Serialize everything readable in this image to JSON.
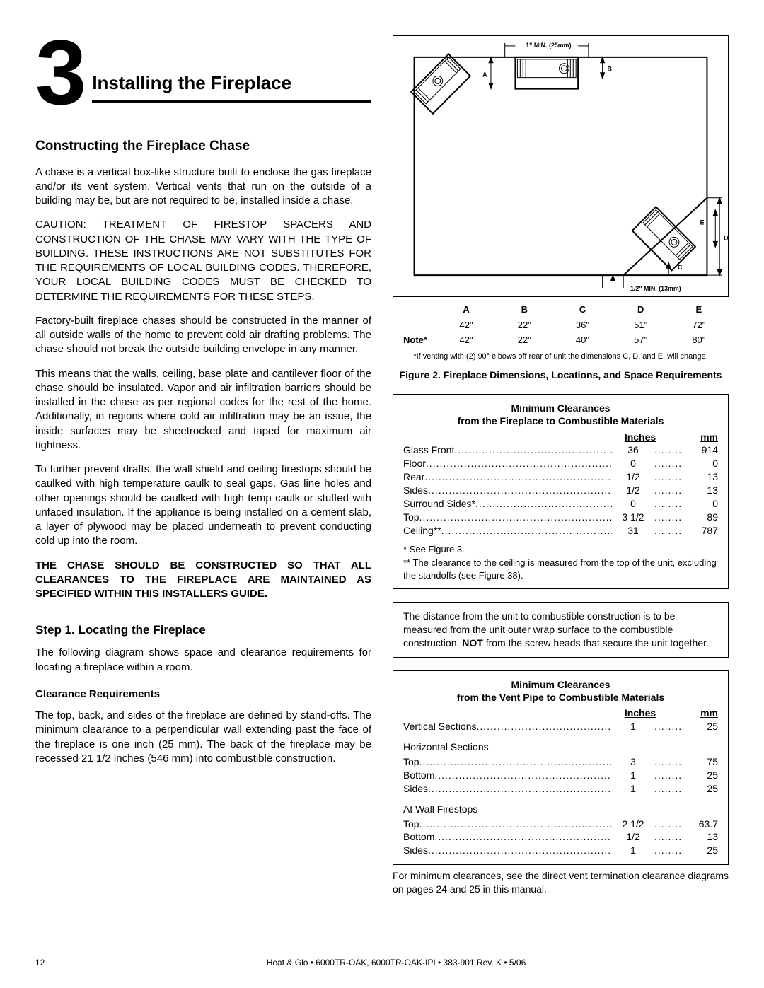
{
  "chapter": {
    "number": "3",
    "title": "Installing the Fireplace"
  },
  "leftcol": {
    "h2": "Constructing the Fireplace Chase",
    "p1": "A chase is a vertical box-like structure built to enclose the gas fireplace and/or its vent system. Vertical vents that run on the outside of a building may be, but are not required to be, installed inside a chase.",
    "p2": "CAUTION: TREATMENT OF FIRESTOP SPACERS AND CONSTRUCTION OF THE CHASE MAY VARY WITH THE TYPE OF BUILDING. THESE INSTRUCTIONS ARE NOT SUBSTITUTES FOR THE REQUIREMENTS OF LOCAL BUILDING CODES. THEREFORE, YOUR LOCAL BUILDING CODES MUST BE CHECKED TO DETERMINE THE REQUIREMENTS FOR THESE STEPS.",
    "p3": "Factory-built fireplace chases should be constructed  in the manner of all outside walls of the home to prevent cold air drafting problems. The chase should not break the outside building envelope in any manner.",
    "p4": "This means that the walls, ceiling, base plate and cantilever floor of the chase should be insulated. Vapor and air infiltration barriers should be installed in the chase as per regional codes for the rest of the home. Additionally, in regions where cold air infiltration may be an issue, the inside surfaces may be sheetrocked and taped for maximum air tightness.",
    "p5": "To further prevent drafts, the wall shield and ceiling firestops should be caulked with high temperature caulk to seal gaps. Gas line holes and other openings should be caulked with high temp caulk or stuffed with unfaced insulation. If the appliance is being installed on a cement slab, a layer of plywood may be placed underneath to prevent conducting cold up into the room.",
    "p6": "THE CHASE SHOULD BE CONSTRUCTED SO THAT ALL CLEARANCES TO THE FIREPLACE ARE MAINTAINED AS SPECIFIED WITHIN THIS INSTALLERS GUIDE.",
    "step1_h": "Step 1.    Locating the Fireplace",
    "step1_p1": "The following diagram shows space and clearance requirements for locating a fireplace within a room.",
    "clr_h": "Clearance Requirements",
    "clr_p1": "The top, back, and sides of the fireplace are defined by stand-offs. The minimum clearance to a perpendicular wall extending past the face of the fireplace is one inch (25 mm). The back of the fireplace may be recessed 21 1/2 inches (546 mm) into combustible construction."
  },
  "diagram": {
    "top_label": "1\" MIN. (25mm)",
    "bottom_label": "1/2\" MIN. (13mm)",
    "letters": {
      "A": "A",
      "B": "B",
      "C": "C",
      "D": "D",
      "E": "E"
    }
  },
  "dims": {
    "headers": [
      "A",
      "B",
      "C",
      "D",
      "E"
    ],
    "row1": [
      "42\"",
      "22\"",
      "36\"",
      "51\"",
      "72\""
    ],
    "row2_label": "Note*",
    "row2": [
      "42\"",
      "22\"",
      "40\"",
      "57\"",
      "80\""
    ],
    "note": "*If venting with (2) 90° elbows off rear of unit the dimensions C, D, and E, will change."
  },
  "fig_caption": "Figure 2.   Fireplace Dimensions, Locations, and Space Requirements",
  "box1": {
    "title1": "Minimum Clearances",
    "title2": "from the Fireplace to Combustible Materials",
    "hdr_in": "Inches",
    "hdr_mm": "mm",
    "rows": [
      {
        "l": "Glass Front",
        "in": "36",
        "mm": "914"
      },
      {
        "l": "Floor",
        "in": "0",
        "mm": "0"
      },
      {
        "l": "Rear",
        "in": "1/2",
        "mm": "13"
      },
      {
        "l": "Sides",
        "in": "1/2",
        "mm": "13"
      },
      {
        "l": "Surround Sides*",
        "in": "0",
        "mm": "0"
      },
      {
        "l": "Top",
        "in": "3 1/2",
        "mm": "89"
      },
      {
        "l": "Ceiling**",
        "in": "31",
        "mm": "787"
      }
    ],
    "note1": "*  See Figure 3.",
    "note2": "** The clearance to the ceiling is measured from the top of the unit, excluding the standoffs (see Figure 38)."
  },
  "box2": {
    "text_pre": "The distance from the unit to combustible construction is to be measured from the unit outer wrap surface to the combustible construction, ",
    "text_bold": "NOT",
    "text_post": " from the screw heads that secure the unit together."
  },
  "box3": {
    "title1": "Minimum Clearances",
    "title2": "from the Vent Pipe to Combustible Materials",
    "hdr_in": "Inches",
    "hdr_mm": "mm",
    "rows1": [
      {
        "l": "Vertical Sections",
        "in": "1",
        "mm": "25"
      }
    ],
    "sec2_label": "Horizontal Sections",
    "rows2": [
      {
        "l": "Top",
        "in": "3",
        "mm": "75"
      },
      {
        "l": "Bottom",
        "in": "1",
        "mm": "25"
      },
      {
        "l": "Sides",
        "in": "1",
        "mm": "25"
      }
    ],
    "sec3_label": "At Wall Firestops",
    "rows3": [
      {
        "l": "Top",
        "in": "2 1/2",
        "mm": "63.7"
      },
      {
        "l": "Bottom",
        "in": "1/2",
        "mm": "13"
      },
      {
        "l": "Sides",
        "in": "1",
        "mm": "25"
      }
    ]
  },
  "after_box3": "For minimum clearances, see the direct vent termination clearance diagrams on pages 24 and 25 in this manual.",
  "footer": {
    "page": "12",
    "text": "Heat & Glo  •  6000TR-OAK, 6000TR-OAK-IPI  •  383-901  Rev. K  •  5/06"
  }
}
